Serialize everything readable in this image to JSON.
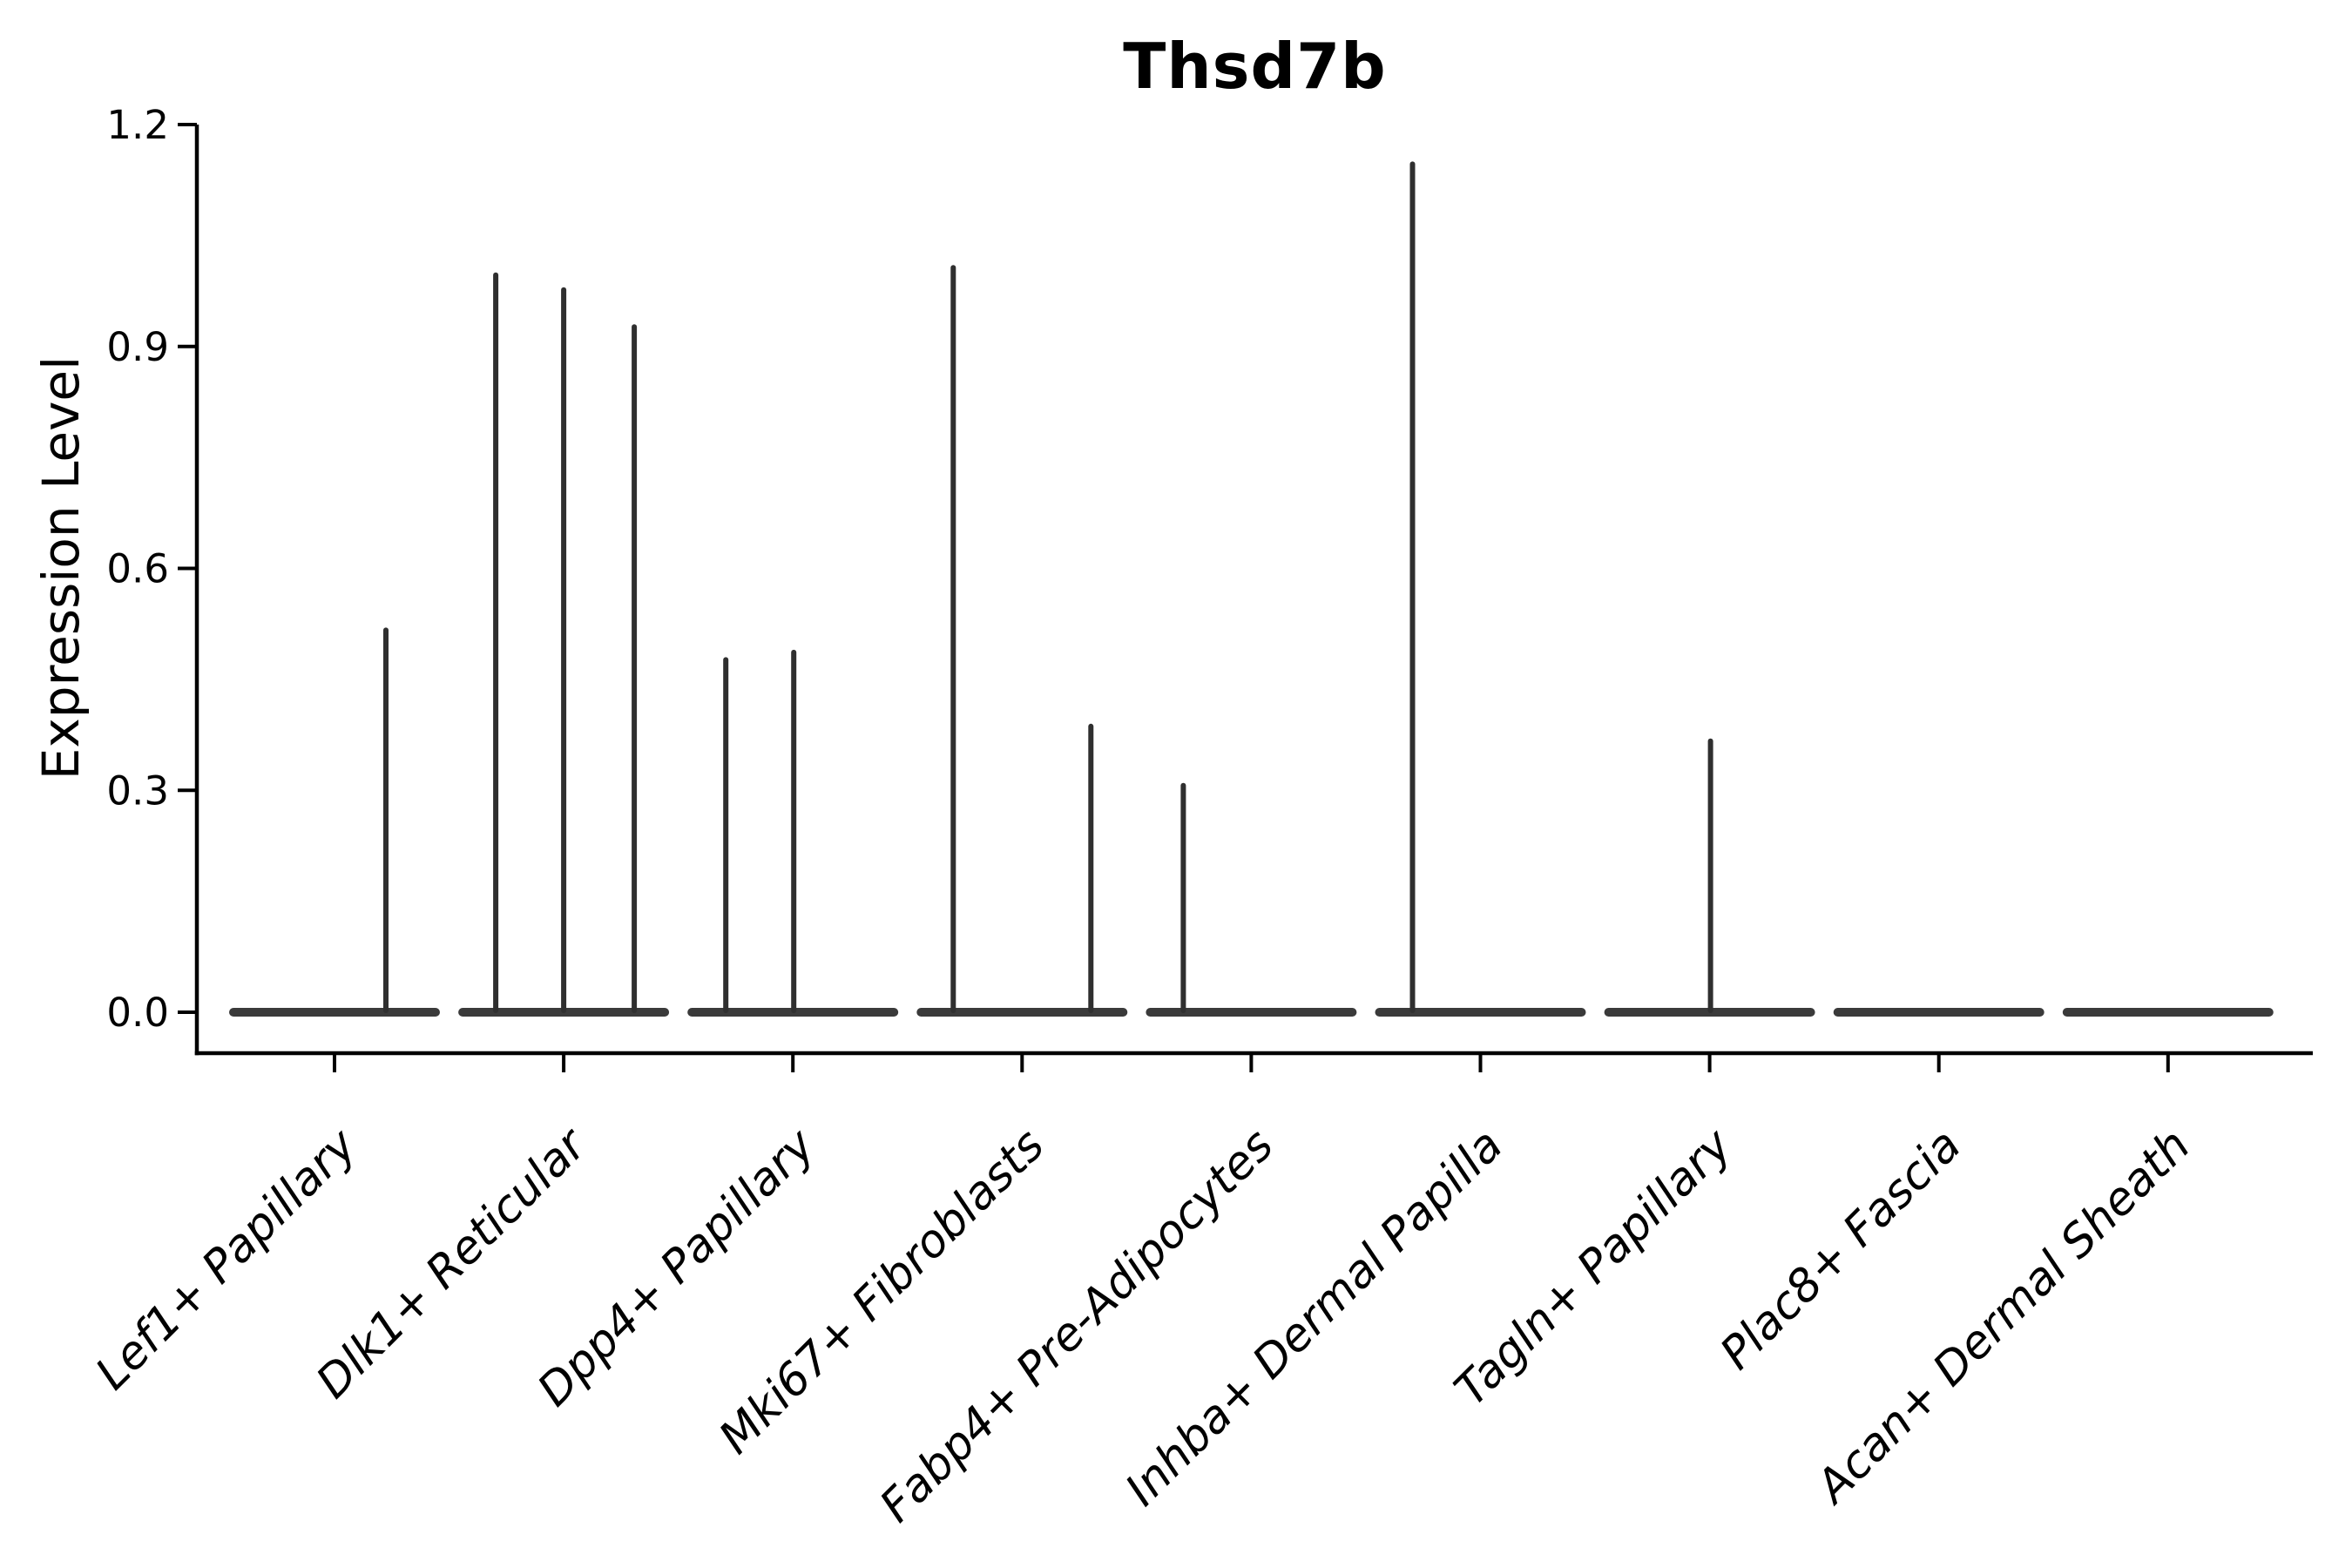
{
  "figure": {
    "background": "#ffffff"
  },
  "chart_data": {
    "type": "violin",
    "title": "Thsd7b",
    "xlabel": "",
    "ylabel": "Expression Level",
    "grid": false,
    "legend": null,
    "ylim": [
      -0.055,
      1.2
    ],
    "yticks": [
      0.0,
      0.3,
      0.6,
      0.9,
      1.2
    ],
    "ytick_labels": [
      "0.0",
      "0.3",
      "0.6",
      "0.9",
      "1.2"
    ],
    "x_label_rotation_deg": 45,
    "x_label_style": "italic",
    "categories": [
      "Lef1+ Papillary",
      "Dlk1+ Reticular",
      "Dpp4+ Papillary",
      "Mki67+ Fibroblasts",
      "Fabp4+ Pre-Adipocytes",
      "Inhba+ Dermal Papilla",
      "Tagln+ Papillary",
      "Plac8+ Fascia",
      "Acan+ Dermal Sheath"
    ],
    "violins": [
      {
        "category": "Lef1+ Papillary",
        "baseline_value": 0.0,
        "spikes": [
          {
            "value": 0.52,
            "dx": 59
          }
        ]
      },
      {
        "category": "Dlk1+ Reticular",
        "baseline_value": 0.0,
        "spikes": [
          {
            "value": 1.0,
            "dx": -78
          },
          {
            "value": 0.98,
            "dx": 0
          },
          {
            "value": 0.93,
            "dx": 81
          }
        ]
      },
      {
        "category": "Dpp4+ Papillary",
        "baseline_value": 0.0,
        "spikes": [
          {
            "value": 0.48,
            "dx": -77
          },
          {
            "value": 0.49,
            "dx": 1
          }
        ]
      },
      {
        "category": "Mki67+ Fibroblasts",
        "baseline_value": 0.0,
        "spikes": [
          {
            "value": 1.01,
            "dx": -79
          },
          {
            "value": 0.39,
            "dx": 79
          }
        ]
      },
      {
        "category": "Fabp4+ Pre-Adipocytes",
        "baseline_value": 0.0,
        "spikes": [
          {
            "value": 0.31,
            "dx": -78
          }
        ]
      },
      {
        "category": "Inhba+ Dermal Papilla",
        "baseline_value": 0.0,
        "spikes": [
          {
            "value": 1.15,
            "dx": -78
          }
        ]
      },
      {
        "category": "Tagln+ Papillary",
        "baseline_value": 0.0,
        "spikes": [
          {
            "value": 0.37,
            "dx": 1
          }
        ]
      },
      {
        "category": "Plac8+ Fascia",
        "baseline_value": 0.0,
        "spikes": []
      },
      {
        "category": "Acan+ Dermal Sheath",
        "baseline_value": 0.0,
        "spikes": []
      }
    ],
    "colors": {
      "violin_fill": "#3a3a3a",
      "spike": "#2f2f2f",
      "axis": "#000000",
      "text": "#000000",
      "background": "#ffffff"
    }
  }
}
